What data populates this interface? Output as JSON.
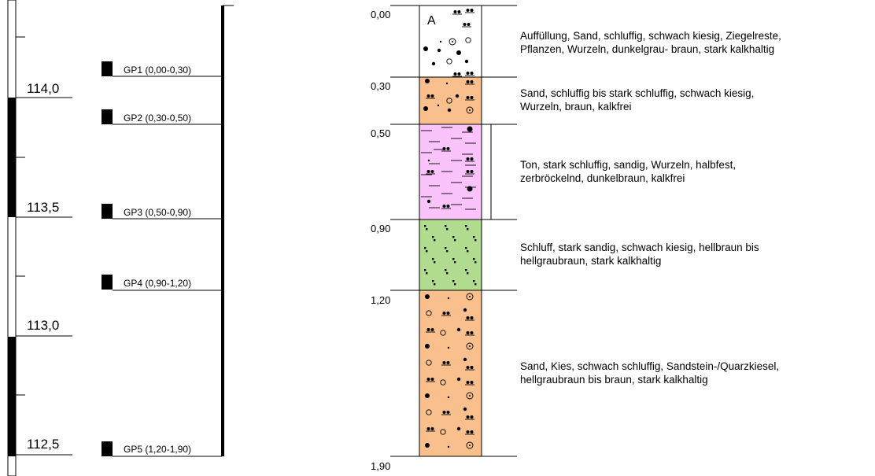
{
  "elevation_scale": {
    "labels": [
      "114,0",
      "113,5",
      "113,0",
      "112,5"
    ]
  },
  "samples": [
    {
      "label": "GP1 (0,00-0,30)"
    },
    {
      "label": "GP2 (0,30-0,50)"
    },
    {
      "label": "GP3 (0,50-0,90)"
    },
    {
      "label": "GP4 (0,90-1,20)"
    },
    {
      "label": "GP5 (1,20-1,90)"
    }
  ],
  "depths": [
    "0,00",
    "0,30",
    "0,50",
    "0,90",
    "1,20",
    "1,90"
  ],
  "layers": [
    {
      "symbol": "A",
      "color": "#ffffff",
      "description": [
        "Auffüllung, Sand, schluffig, schwach kiesig, Ziegelreste,",
        "Pflanzen, Wurzeln, dunkelgrau- braun, stark kalkhaltig"
      ]
    },
    {
      "color": "#f9c08e",
      "description": [
        "Sand, schluffig bis stark schluffig, schwach kiesig,",
        "Wurzeln, braun, kalkfrei"
      ]
    },
    {
      "color": "#fbc3fb",
      "description": [
        "Ton, stark schluffig, sandig, Wurzeln, halbfest,",
        "zerbröckelnd, dunkelbraun, kalkfrei"
      ]
    },
    {
      "color": "#b1dc90",
      "description": [
        "Schluff, stark sandig, schwach kiesig, hellbraun bis",
        "hellgraubraun, stark kalkhaltig"
      ]
    },
    {
      "color": "#f9c08e",
      "description": [
        "Sand, Kies, schwach schluffig, Sandstein-/Quarzkiesel,",
        "hellgraubraun bis braun, stark kalkhaltig"
      ]
    }
  ]
}
